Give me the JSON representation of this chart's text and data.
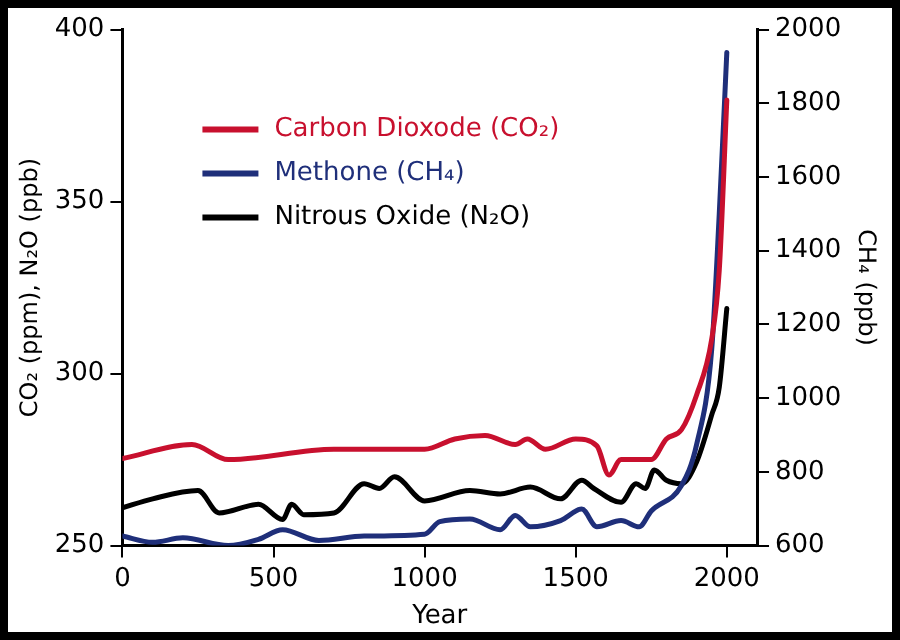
{
  "chart_data": {
    "type": "line",
    "xlabel": "Year",
    "ylabel": "CO₂ (ppm), N₂O (ppb)",
    "y2label": "CH₄ (ppb)",
    "xlim": [
      0,
      2100
    ],
    "xticks": [
      0,
      500,
      1000,
      1500,
      2000
    ],
    "ylim": [
      250,
      400
    ],
    "yticks": [
      250,
      300,
      350,
      400
    ],
    "y2lim": [
      600,
      2000
    ],
    "y2ticks": [
      600,
      800,
      1000,
      1200,
      1400,
      1600,
      1800,
      2000
    ],
    "legend": "top left",
    "grid": false,
    "marker": "none",
    "line_style": "solid",
    "series": [
      {
        "name": "Carbon Dioxode (CO₂)",
        "color": "#c8102e",
        "x": [
          0,
          230,
          350,
          700,
          1000,
          1100,
          1200,
          1300,
          1340,
          1400,
          1500,
          1570,
          1610,
          1650,
          1750,
          1800,
          1850,
          1900,
          1950,
          1975,
          2000
        ],
        "values": [
          275.3,
          279.4,
          275,
          278,
          278,
          281,
          282,
          279.4,
          281,
          278,
          281,
          279,
          270.5,
          275,
          275,
          281,
          283.7,
          293.8,
          310,
          330,
          379.5
        ]
      },
      {
        "name": "Methone (CH₄)",
        "color": "#1f2f7a",
        "axis": "y2",
        "x": [
          0,
          100,
          200,
          350,
          450,
          530,
          650,
          800,
          1000,
          1050,
          1150,
          1250,
          1300,
          1350,
          1450,
          1520,
          1570,
          1650,
          1710,
          1750,
          1850,
          1900,
          1950,
          1975,
          2000
        ],
        "values": [
          626,
          609,
          621,
          600,
          617,
          643,
          614,
          626,
          631,
          665,
          672,
          643,
          682,
          651,
          668,
          699,
          651,
          668,
          651,
          694,
          763,
          874,
          1132,
          1500,
          1938
        ]
      },
      {
        "name": "Nitrous Oxide (N₂O)",
        "color": "#000000",
        "x": [
          0,
          100,
          250,
          320,
          450,
          530,
          560,
          600,
          700,
          800,
          850,
          900,
          1000,
          1150,
          1250,
          1350,
          1450,
          1520,
          1560,
          1650,
          1700,
          1730,
          1760,
          1800,
          1850,
          1900,
          1950,
          1975,
          2000
        ],
        "values": [
          261,
          263.6,
          266,
          259.5,
          262,
          257.6,
          262,
          259,
          259.5,
          268,
          266.6,
          270,
          263,
          266,
          265,
          267,
          263.6,
          269,
          266.6,
          262.6,
          268,
          266.6,
          272,
          269,
          268,
          274.3,
          288,
          296,
          318.9
        ]
      }
    ]
  }
}
